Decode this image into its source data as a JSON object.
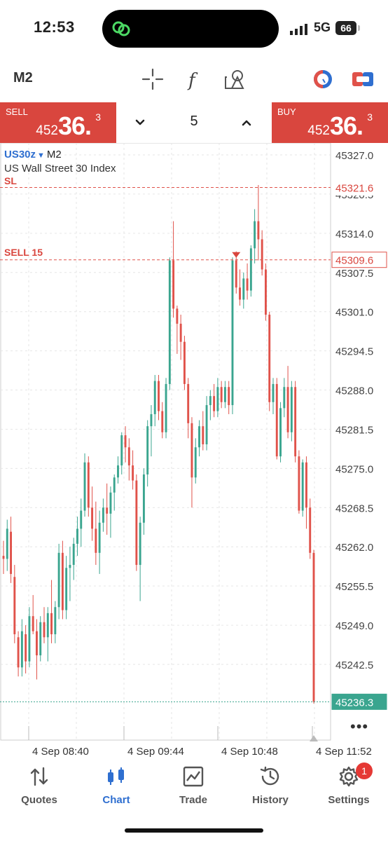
{
  "status_bar": {
    "time": "12:53",
    "network": "5G",
    "battery": "66"
  },
  "toolbar": {
    "timeframe": "M2",
    "icons": [
      "crosshair-icon",
      "function-icon",
      "objects-icon",
      "account-icon",
      "trade-toggle-icon"
    ]
  },
  "trade": {
    "sell": {
      "label": "SELL",
      "price_prefix": "452",
      "price_main": "36.",
      "price_sup": "3"
    },
    "buy": {
      "label": "BUY",
      "price_prefix": "452",
      "price_main": "36.",
      "price_sup": "3"
    },
    "quantity": "5"
  },
  "chart": {
    "symbol": "US30z",
    "timeframe": "M2",
    "description": "US Wall Street 30 Index",
    "sl_label": "SL",
    "sell_order_label": "SELL 15",
    "sl_price": "45321.6",
    "order_price": "45309.6",
    "current_price": "45236.3",
    "more": "•••"
  },
  "chart_data": {
    "type": "candlestick",
    "symbol": "US30z",
    "timeframe": "M2",
    "y_ticks": [
      "45327.0",
      "45320.5",
      "45314.0",
      "45307.5",
      "45301.0",
      "45294.5",
      "45288.0",
      "45281.5",
      "45275.0",
      "45268.5",
      "45262.0",
      "45255.5",
      "45249.0",
      "45242.5"
    ],
    "x_labels": [
      "4 Sep 08:40",
      "4 Sep 09:44",
      "4 Sep 10:48",
      "4 Sep 11:52"
    ],
    "price_levels": [
      {
        "name": "SL",
        "value": 45321.6
      },
      {
        "name": "SELL 15",
        "value": 45309.6
      },
      {
        "name": "current",
        "value": 45236.3
      }
    ],
    "ylim": [
      45229,
      45329
    ],
    "colors": {
      "up": "#3aa58f",
      "down": "#e0524a"
    },
    "candles": [
      [
        45260.5,
        45263.0,
        45257.5,
        45260.0
      ],
      [
        45260.0,
        45266.5,
        45258.0,
        45265.0
      ],
      [
        45264.5,
        45267.0,
        45256.0,
        45257.5
      ],
      [
        45257.0,
        45259.0,
        45246.0,
        45247.5
      ],
      [
        45247.0,
        45248.0,
        45240.5,
        45242.0
      ],
      [
        45242.0,
        45250.0,
        45240.5,
        45248.0
      ],
      [
        45247.5,
        45249.0,
        45241.0,
        45243.0
      ],
      [
        45243.0,
        45252.0,
        45242.0,
        45250.5
      ],
      [
        45250.5,
        45254.0,
        45247.5,
        45248.0
      ],
      [
        45248.0,
        45250.0,
        45240.0,
        45244.0
      ],
      [
        45244.0,
        45250.5,
        45243.0,
        45249.5
      ],
      [
        45249.5,
        45252.0,
        45246.0,
        45247.0
      ],
      [
        45247.0,
        45252.0,
        45243.0,
        45251.0
      ],
      [
        45251.0,
        45256.5,
        45246.0,
        45247.5
      ],
      [
        45247.5,
        45253.0,
        45246.0,
        45252.0
      ],
      [
        45252.0,
        45262.5,
        45250.0,
        45261.0
      ],
      [
        45261.0,
        45263.0,
        45250.0,
        45251.5
      ],
      [
        45251.5,
        45260.5,
        45250.0,
        45258.5
      ],
      [
        45258.5,
        45262.0,
        45253.0,
        45259.0
      ],
      [
        45259.0,
        45263.5,
        45256.5,
        45262.5
      ],
      [
        45262.5,
        45267.0,
        45260.5,
        45265.0
      ],
      [
        45265.0,
        45270.0,
        45262.0,
        45268.0
      ],
      [
        45268.0,
        45277.5,
        45267.0,
        45276.0
      ],
      [
        45276.0,
        45277.0,
        45267.0,
        45268.5
      ],
      [
        45268.5,
        45272.0,
        45263.0,
        45265.0
      ],
      [
        45265.0,
        45269.5,
        45259.0,
        45261.0
      ],
      [
        45261.0,
        45268.0,
        45257.5,
        45266.0
      ],
      [
        45266.0,
        45270.0,
        45264.5,
        45268.5
      ],
      [
        45268.5,
        45272.5,
        45264.0,
        45267.5
      ],
      [
        45267.5,
        45272.0,
        45263.5,
        45271.0
      ],
      [
        45271.0,
        45274.0,
        45268.0,
        45273.5
      ],
      [
        45273.5,
        45277.0,
        45272.5,
        45275.5
      ],
      [
        45275.5,
        45281.0,
        45274.0,
        45280.5
      ],
      [
        45280.5,
        45282.0,
        45276.0,
        45278.5
      ],
      [
        45278.5,
        45280.0,
        45273.0,
        45275.5
      ],
      [
        45275.5,
        45278.0,
        45271.5,
        45273.0
      ],
      [
        45273.0,
        45274.0,
        45258.0,
        45259.0
      ],
      [
        45259.0,
        45267.0,
        45253.0,
        45266.0
      ],
      [
        45266.0,
        45275.0,
        45264.0,
        45274.0
      ],
      [
        45274.0,
        45283.0,
        45272.0,
        45282.0
      ],
      [
        45282.0,
        45285.5,
        45277.0,
        45284.0
      ],
      [
        45284.0,
        45290.5,
        45282.0,
        45289.5
      ],
      [
        45289.5,
        45290.5,
        45283.0,
        45284.5
      ],
      [
        45284.5,
        45286.0,
        45280.0,
        45281.0
      ],
      [
        45281.0,
        45290.0,
        45280.0,
        45289.0
      ],
      [
        45289.0,
        45310.0,
        45288.0,
        45309.5
      ],
      [
        45309.5,
        45316.0,
        45300.0,
        45301.5
      ],
      [
        45301.5,
        45302.0,
        45294.0,
        45299.0
      ],
      [
        45299.0,
        45300.5,
        45293.0,
        45296.0
      ],
      [
        45296.0,
        45297.0,
        45288.0,
        45289.0
      ],
      [
        45289.0,
        45290.0,
        45280.0,
        45282.5
      ],
      [
        45282.5,
        45283.5,
        45268.5,
        45273.5
      ],
      [
        45273.5,
        45280.0,
        45272.5,
        45278.5
      ],
      [
        45278.5,
        45283.0,
        45277.0,
        45282.0
      ],
      [
        45282.0,
        45284.5,
        45278.0,
        45279.0
      ],
      [
        45279.0,
        45287.0,
        45278.0,
        45285.5
      ],
      [
        45285.5,
        45288.0,
        45283.0,
        45287.0
      ],
      [
        45287.0,
        45289.0,
        45283.5,
        45284.5
      ],
      [
        45284.5,
        45290.0,
        45283.5,
        45288.5
      ],
      [
        45288.5,
        45289.5,
        45285.0,
        45286.0
      ],
      [
        45286.0,
        45289.5,
        45285.0,
        45288.5
      ],
      [
        45288.5,
        45289.5,
        45284.0,
        45285.5
      ],
      [
        45285.5,
        45310.0,
        45284.0,
        45309.5
      ],
      [
        45309.5,
        45311.0,
        45304.0,
        45305.0
      ],
      [
        45305.0,
        45308.0,
        45302.0,
        45303.0
      ],
      [
        45303.0,
        45307.5,
        45301.5,
        45306.5
      ],
      [
        45306.5,
        45309.0,
        45303.0,
        45304.5
      ],
      [
        45304.5,
        45312.0,
        45303.5,
        45311.5
      ],
      [
        45311.5,
        45318.0,
        45309.0,
        45316.0
      ],
      [
        45316.0,
        45322.0,
        45309.5,
        45313.0
      ],
      [
        45313.0,
        45314.5,
        45307.0,
        45308.0
      ],
      [
        45308.0,
        45309.0,
        45299.5,
        45300.5
      ],
      [
        45300.5,
        45301.0,
        45284.5,
        45286.0
      ],
      [
        45286.0,
        45290.0,
        45284.0,
        45289.0
      ],
      [
        45289.0,
        45290.0,
        45276.5,
        45277.0
      ],
      [
        45277.0,
        45286.0,
        45276.0,
        45285.0
      ],
      [
        45285.0,
        45290.0,
        45283.5,
        45288.5
      ],
      [
        45288.5,
        45292.0,
        45280.0,
        45281.0
      ],
      [
        45281.0,
        45289.5,
        45279.5,
        45288.5
      ],
      [
        45288.5,
        45289.5,
        45276.0,
        45277.0
      ],
      [
        45277.0,
        45278.0,
        45267.5,
        45268.0
      ],
      [
        45268.0,
        45276.5,
        45267.0,
        45276.0
      ],
      [
        45276.0,
        45277.0,
        45265.0,
        45268.5
      ],
      [
        45268.5,
        45270.0,
        45260.0,
        45261.0
      ],
      [
        45261.0,
        45261.5,
        45236.0,
        45236.3
      ]
    ]
  },
  "bottom_nav": {
    "items": [
      {
        "label": "Quotes",
        "icon": "quotes-icon"
      },
      {
        "label": "Chart",
        "icon": "chart-icon"
      },
      {
        "label": "Trade",
        "icon": "trade-icon"
      },
      {
        "label": "History",
        "icon": "history-icon"
      },
      {
        "label": "Settings",
        "icon": "settings-icon",
        "badge": "1"
      }
    ],
    "active": "Chart"
  }
}
